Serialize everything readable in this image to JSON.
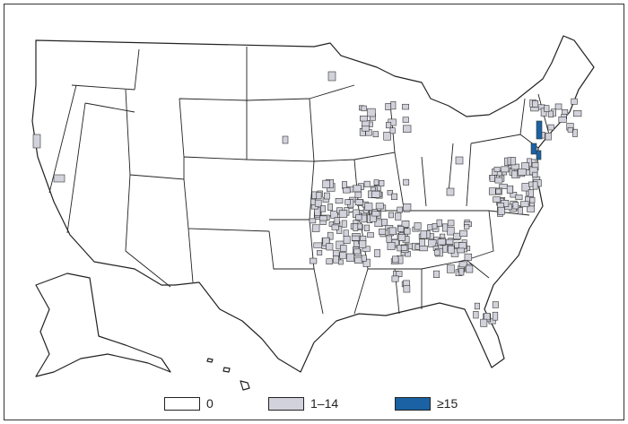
{
  "map": {
    "legend": [
      {
        "label": "0",
        "color": "#ffffff"
      },
      {
        "label": "1–14",
        "color": "#d2d2dc"
      },
      {
        "label": "≥15",
        "color": "#1a62a3"
      }
    ],
    "state_fill": "#ffffff",
    "border_color": "#222222"
  }
}
